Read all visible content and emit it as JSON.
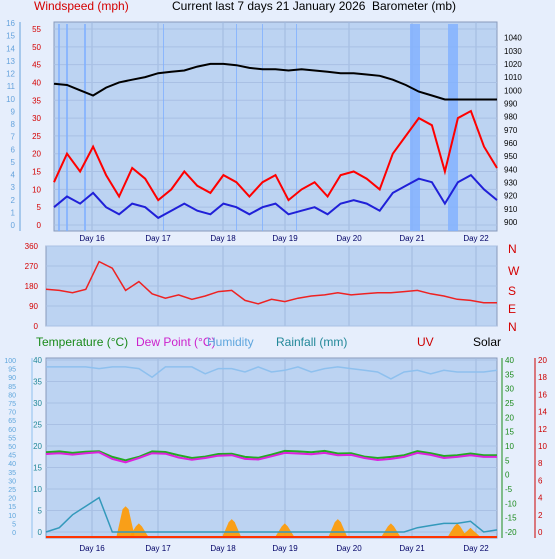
{
  "header": {
    "windspeed_label": "Windspeed (mph)",
    "title": "Current last 7 days 21 January 2026",
    "barometer_label": "Barometer (mb)"
  },
  "legend": {
    "temperature": "Temperature (°C)",
    "dew_point": "Dew Point (°C)",
    "humidity": "Humidity",
    "rainfall": "Rainfall (mm)",
    "uv": "UV",
    "solar": "Solar"
  },
  "colors": {
    "background": "#e6eefc",
    "plot": "#bcd3f2",
    "gust": "#ff0000",
    "wind": "#2020d8",
    "barometer": "#000000",
    "gust_spikes": "#7fb0ff",
    "direction": "#ee2222",
    "temperature": "#22aa22",
    "dew_point": "#dd22dd",
    "humidity": "#8ec0ee",
    "rainfall": "#3399bb",
    "solar": "#ff9900",
    "uv": "#cc0000"
  },
  "chart_data": [
    {
      "type": "line",
      "name": "wind-barometer",
      "x_ticks": [
        "Day 16",
        "Day 17",
        "Day 18",
        "Day 19",
        "Day 20",
        "Day 21",
        "Day 22"
      ],
      "left_axis_inner": {
        "ylim": [
          0,
          55
        ],
        "ticks": [
          0,
          5,
          10,
          15,
          20,
          25,
          30,
          35,
          40,
          45,
          50,
          55
        ]
      },
      "left_axis_outer": {
        "ylim": [
          0,
          16
        ],
        "ticks": [
          0,
          1,
          2,
          3,
          4,
          5,
          6,
          7,
          8,
          9,
          10,
          11,
          12,
          13,
          14,
          15,
          16
        ]
      },
      "right_axis": {
        "ylim": [
          900,
          1045
        ],
        "ticks": [
          900,
          910,
          920,
          930,
          940,
          950,
          960,
          970,
          980,
          990,
          1000,
          1010,
          1020,
          1030,
          1040
        ]
      },
      "barometer": [
        1005,
        1004,
        1000,
        996,
        1002,
        1006,
        1008,
        1010,
        1013,
        1014,
        1015,
        1018,
        1020,
        1020,
        1019,
        1017,
        1016,
        1016,
        1015,
        1016,
        1015,
        1014,
        1013,
        1013,
        1012,
        1011,
        1008,
        1004,
        999,
        996,
        993,
        993,
        993,
        993,
        993
      ],
      "gust": [
        12,
        20,
        15,
        22,
        14,
        8,
        16,
        13,
        7,
        10,
        15,
        11,
        9,
        14,
        12,
        8,
        12,
        14,
        7,
        10,
        12,
        8,
        14,
        15,
        13,
        10,
        20,
        25,
        30,
        28,
        15,
        30,
        32,
        22,
        16
      ],
      "wind": [
        5,
        8,
        6,
        9,
        5,
        3,
        6,
        5,
        2,
        4,
        6,
        4,
        3,
        6,
        5,
        3,
        5,
        6,
        3,
        4,
        5,
        3,
        6,
        7,
        6,
        4,
        9,
        11,
        13,
        12,
        6,
        12,
        14,
        10,
        7
      ]
    },
    {
      "type": "line",
      "name": "wind-direction",
      "ylim": [
        0,
        360
      ],
      "left_ticks": [
        0,
        90,
        180,
        270,
        360
      ],
      "right_labels": [
        "N",
        "W",
        "S",
        "E",
        "N"
      ],
      "values": [
        165,
        160,
        150,
        165,
        290,
        260,
        160,
        200,
        145,
        125,
        140,
        120,
        135,
        155,
        160,
        115,
        100,
        120,
        110,
        125,
        135,
        140,
        150,
        140,
        145,
        150,
        150,
        155,
        160,
        145,
        135,
        120,
        115,
        105,
        105
      ]
    },
    {
      "type": "line",
      "name": "temperature-rain",
      "left_axis": {
        "ylim": [
          0,
          100
        ],
        "ticks": [
          0,
          5,
          10,
          15,
          20,
          25,
          30,
          35,
          40,
          45,
          50,
          55,
          60,
          65,
          70,
          75,
          80,
          85,
          90,
          95,
          100
        ]
      },
      "middle_axis": {
        "ylim": [
          0,
          40
        ],
        "ticks": [
          0,
          5,
          10,
          15,
          20,
          25,
          30,
          35,
          40
        ]
      },
      "temp_axis": {
        "ylim": [
          -20,
          40
        ],
        "ticks": [
          -20,
          -15,
          -10,
          -5,
          0,
          5,
          10,
          15,
          20,
          25,
          30,
          35,
          40
        ]
      },
      "uv_axis": {
        "ylim": [
          0,
          20
        ],
        "ticks": [
          0,
          2,
          4,
          6,
          8,
          10,
          12,
          14,
          16,
          18,
          20
        ]
      },
      "humidity": [
        96,
        96,
        96,
        96,
        95,
        96,
        96,
        95,
        90,
        96,
        96,
        96,
        92,
        95,
        95,
        93,
        96,
        93,
        94,
        96,
        93,
        95,
        96,
        95,
        94,
        93,
        89,
        93,
        94,
        92,
        94,
        93,
        93,
        93,
        94
      ],
      "temperature": [
        7.8,
        8.1,
        7.6,
        8.0,
        8.2,
        6.2,
        5.0,
        6.2,
        8.1,
        7.9,
        6.8,
        5.8,
        6.3,
        7.2,
        7.3,
        6.2,
        5.9,
        7.0,
        8.3,
        8.1,
        7.8,
        8.3,
        7.4,
        7.5,
        6.3,
        5.8,
        6.2,
        6.8,
        8.2,
        7.5,
        6.5,
        6.8,
        7.4,
        6.8,
        6.8
      ],
      "dew_point": [
        7.2,
        7.5,
        7.0,
        7.5,
        7.8,
        5.5,
        4.3,
        5.8,
        7.5,
        7.3,
        6.0,
        5.2,
        5.8,
        6.6,
        6.8,
        5.5,
        5.3,
        6.4,
        7.6,
        7.4,
        7.1,
        7.6,
        6.8,
        6.9,
        5.8,
        5.1,
        5.5,
        6.2,
        7.6,
        6.9,
        5.8,
        6.2,
        6.8,
        6.2,
        6.2
      ],
      "rainfall": [
        0,
        1,
        4,
        6,
        8,
        0,
        0,
        0,
        0,
        0,
        0,
        0,
        0,
        0,
        0,
        0,
        0,
        0,
        0,
        0,
        0,
        0,
        0,
        0,
        0,
        0,
        0,
        0,
        1,
        1.5,
        2,
        2,
        2.5,
        0,
        0.5
      ],
      "solar": [
        0,
        0,
        0,
        0,
        0,
        0,
        6,
        2,
        0,
        0,
        0,
        0,
        0,
        0,
        3,
        0,
        0,
        0,
        2,
        0,
        0,
        0,
        3,
        0,
        0,
        0,
        2,
        0,
        0,
        0,
        0,
        2,
        1,
        0,
        0
      ]
    }
  ]
}
